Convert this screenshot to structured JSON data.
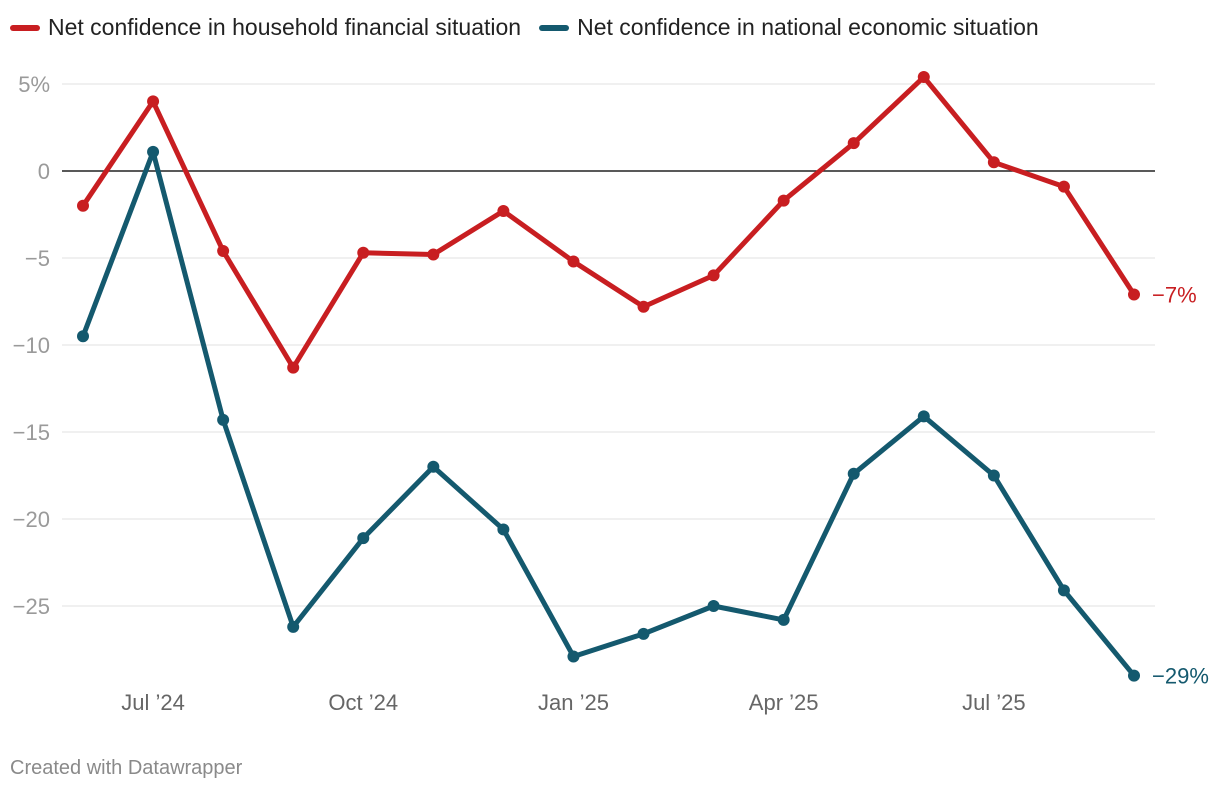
{
  "colors": {
    "household": "#c81e21",
    "national": "#14596e",
    "grid": "#e0e0e0",
    "zero": "#222222"
  },
  "legend": [
    {
      "label": "Net confidence in household financial situation",
      "color": "#c81e21"
    },
    {
      "label": "Net confidence in national economic situation",
      "color": "#14596e"
    }
  ],
  "chart_data": {
    "type": "line",
    "title": "",
    "xlabel": "",
    "ylabel": "",
    "ylim": [
      -29,
      6
    ],
    "y_ticks": [
      5,
      0,
      -5,
      -10,
      -15,
      -20,
      -25
    ],
    "y_tick_labels": [
      "5%",
      "0",
      "−5",
      "−10",
      "−15",
      "−20",
      "−25"
    ],
    "x": [
      "Jun '24",
      "Jul '24",
      "Aug '24",
      "Sep '24",
      "Oct '24",
      "Nov '24",
      "Dec '24",
      "Jan '25",
      "Feb '25",
      "Mar '25",
      "Apr '25",
      "May '25",
      "Jun '25",
      "Jul '25",
      "Aug '25",
      "Sep '25"
    ],
    "x_tick_labels": [
      {
        "index": 1,
        "label": "Jul ’24"
      },
      {
        "index": 4,
        "label": "Oct ’24"
      },
      {
        "index": 7,
        "label": "Jan ’25"
      },
      {
        "index": 10,
        "label": "Apr ’25"
      },
      {
        "index": 13,
        "label": "Jul ’25"
      }
    ],
    "series": [
      {
        "name": "Net confidence in household financial situation",
        "key": "household",
        "values": [
          -2,
          4,
          -4.6,
          -11.3,
          -4.7,
          -4.8,
          -2.3,
          -5.2,
          -7.8,
          -6,
          -1.7,
          1.6,
          5.4,
          0.5,
          -0.9,
          -7.1
        ],
        "end_label": "−7%"
      },
      {
        "name": "Net confidence in national economic situation",
        "key": "national",
        "values": [
          -9.5,
          1.1,
          -14.3,
          -26.2,
          -21.1,
          -17,
          -20.6,
          -27.9,
          -26.6,
          -25,
          -25.8,
          -17.4,
          -14.1,
          -17.5,
          -24.1,
          -29
        ],
        "end_label": "−29%"
      }
    ]
  },
  "footer": "Created with Datawrapper"
}
